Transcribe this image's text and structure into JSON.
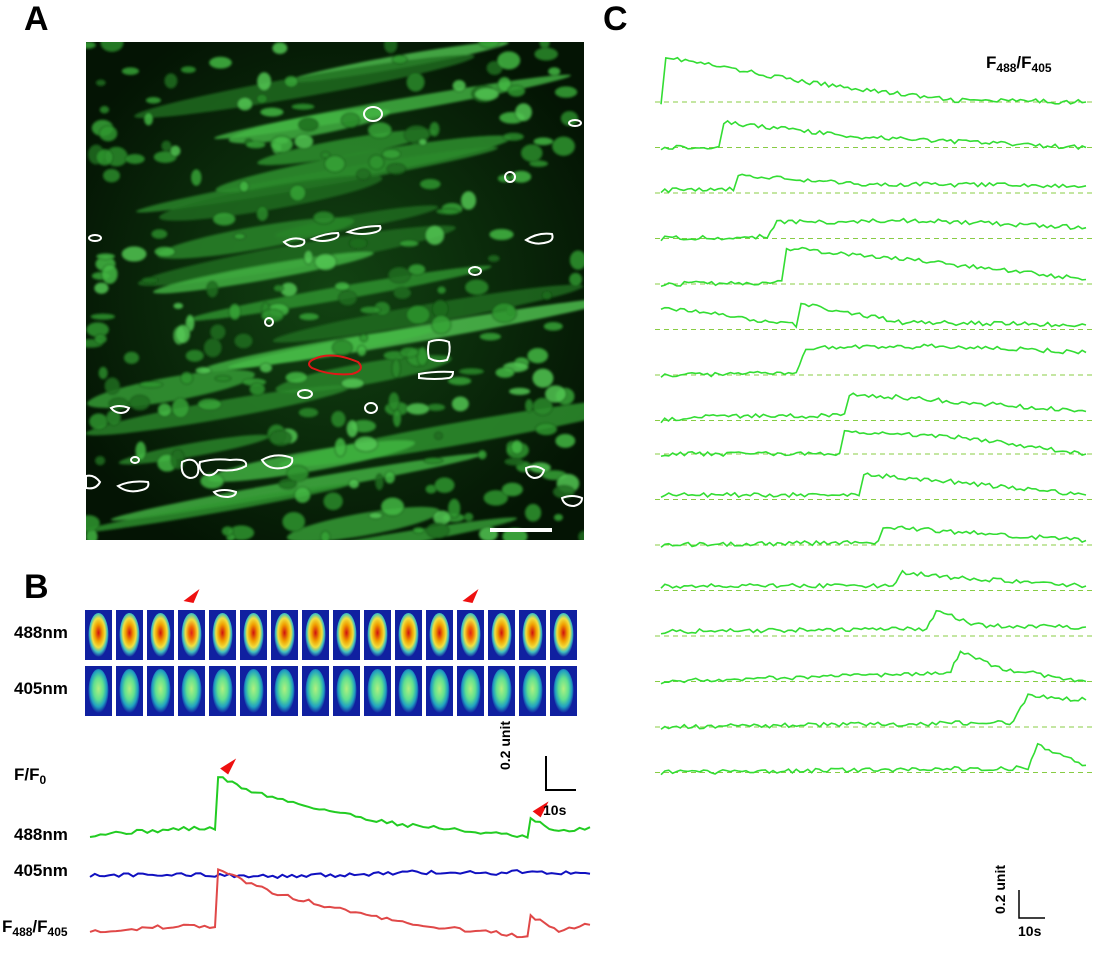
{
  "panels": {
    "a_label": "A",
    "b_label": "B",
    "c_label": "C"
  },
  "panel_b": {
    "row1_label": "488nm",
    "row2_label": "405nm",
    "trace_title": "F/F",
    "trace_title_sub": "0",
    "trace1_label": "488nm",
    "trace2_label": "405nm",
    "trace3_label_main": "F",
    "trace3_label_sub1": "488",
    "trace3_label_mid": "/F",
    "trace3_label_sub2": "405",
    "scale_y": "0.2 unit",
    "scale_x": "10s",
    "colors": {
      "trace_488": "#22cc22",
      "trace_405": "#1010c0",
      "trace_ratio": "#e04848",
      "arrowhead": "#ee1010"
    }
  },
  "panel_c": {
    "title_main": "F",
    "title_sub1": "488",
    "title_mid": "/F",
    "title_sub2": "405",
    "scale_y": "0.2 unit",
    "scale_x": "10s",
    "trace_color": "#33dd33",
    "baseline_color": "#88cc44"
  },
  "chart_data": [
    {
      "type": "line",
      "panel": "B",
      "title": "F/F0",
      "series": [
        {
          "name": "488nm",
          "x": [
            0,
            5,
            10,
            15,
            20,
            20.5,
            25,
            30,
            35,
            40,
            45,
            50,
            55,
            60,
            65,
            70,
            70.5,
            75,
            80
          ],
          "values": [
            1.0,
            1.02,
            1.03,
            1.05,
            1.05,
            1.45,
            1.35,
            1.28,
            1.22,
            1.17,
            1.12,
            1.08,
            1.06,
            1.03,
            1.01,
            0.98,
            1.12,
            1.02,
            1.06
          ]
        },
        {
          "name": "405nm",
          "x": [
            0,
            10,
            20,
            30,
            40,
            50,
            60,
            65,
            70,
            80
          ],
          "values": [
            1.0,
            1.0,
            1.0,
            0.99,
            1.0,
            1.02,
            1.02,
            1.01,
            1.03,
            1.01
          ]
        },
        {
          "name": "F488/F405",
          "x": [
            0,
            5,
            10,
            15,
            20,
            20.5,
            25,
            30,
            35,
            40,
            45,
            50,
            55,
            60,
            65,
            70,
            70.5,
            75,
            80
          ],
          "values": [
            1.0,
            0.99,
            1.02,
            1.03,
            1.03,
            1.48,
            1.36,
            1.28,
            1.22,
            1.16,
            1.11,
            1.06,
            1.03,
            1.0,
            0.98,
            0.94,
            1.1,
            1.0,
            1.04
          ]
        }
      ],
      "scale_bar": {
        "y": "0.2 unit",
        "x": "10s"
      }
    },
    {
      "type": "line",
      "panel": "C",
      "title": "F488/F405",
      "series": [
        {
          "x": [
            0,
            1,
            30,
            60,
            88
          ],
          "values": [
            0.0,
            0.5,
            0.22,
            0.02,
            0.0
          ]
        },
        {
          "x": [
            0,
            12,
            13,
            40,
            88
          ],
          "values": [
            0.0,
            0.01,
            0.28,
            0.12,
            0.0
          ]
        },
        {
          "x": [
            0,
            15,
            16,
            40,
            88
          ],
          "values": [
            0.03,
            0.05,
            0.2,
            0.1,
            0.08
          ]
        },
        {
          "x": [
            0,
            22,
            24,
            55,
            88
          ],
          "values": [
            0.0,
            0.02,
            0.18,
            0.2,
            0.12
          ]
        },
        {
          "x": [
            0,
            25,
            26,
            55,
            88
          ],
          "values": [
            0.0,
            0.02,
            0.4,
            0.25,
            0.05
          ]
        },
        {
          "x": [
            0,
            28,
            29,
            50,
            88
          ],
          "values": [
            0.25,
            0.05,
            0.28,
            0.08,
            0.05
          ]
        },
        {
          "x": [
            0,
            28,
            30,
            60,
            88
          ],
          "values": [
            0.0,
            0.02,
            0.3,
            0.32,
            0.25
          ]
        },
        {
          "x": [
            0,
            10,
            38,
            39,
            88
          ],
          "values": [
            0.0,
            0.05,
            0.05,
            0.3,
            0.1
          ]
        },
        {
          "x": [
            0,
            37,
            38,
            60,
            88
          ],
          "values": [
            0.0,
            0.0,
            0.25,
            0.2,
            0.0
          ]
        },
        {
          "x": [
            0,
            41,
            42,
            60,
            88
          ],
          "values": [
            0.05,
            0.05,
            0.28,
            0.2,
            0.05
          ]
        },
        {
          "x": [
            0,
            45,
            46,
            60,
            88
          ],
          "values": [
            0.0,
            0.03,
            0.2,
            0.15,
            0.05
          ]
        },
        {
          "x": [
            0,
            48,
            50,
            60,
            88
          ],
          "values": [
            0.05,
            0.05,
            0.2,
            0.15,
            0.05
          ]
        },
        {
          "x": [
            0,
            55,
            57,
            65,
            88
          ],
          "values": [
            0.05,
            0.08,
            0.28,
            0.12,
            0.1
          ]
        },
        {
          "x": [
            0,
            60,
            62,
            70,
            88
          ],
          "values": [
            0.0,
            0.1,
            0.35,
            0.15,
            0.0
          ]
        },
        {
          "x": [
            0,
            73,
            76,
            88
          ],
          "values": [
            0.0,
            0.05,
            0.35,
            0.3
          ]
        },
        {
          "x": [
            0,
            76,
            78,
            88
          ],
          "values": [
            0.0,
            0.05,
            0.3,
            0.08
          ]
        }
      ],
      "scale_bar": {
        "y": "0.2 unit",
        "x": "10s"
      }
    }
  ]
}
